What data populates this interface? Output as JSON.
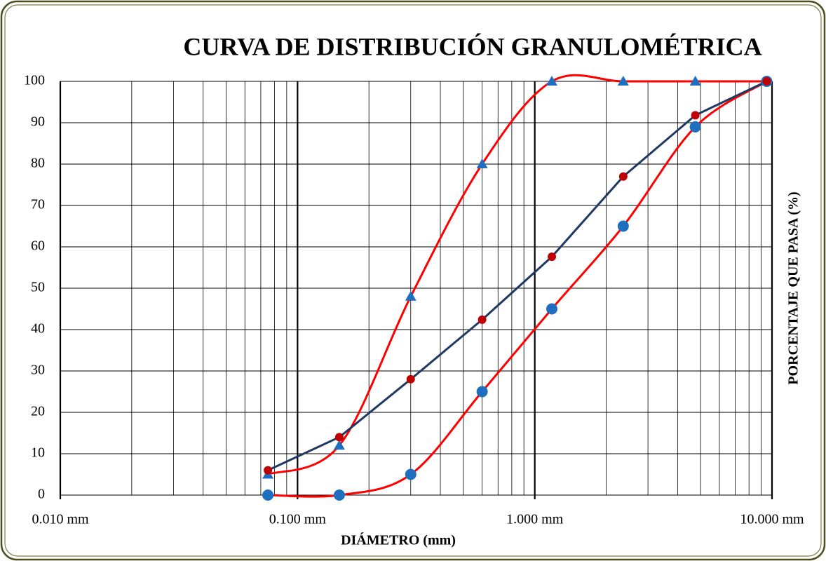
{
  "chart_data": {
    "type": "line",
    "title": "CURVA DE DISTRIBUCIÓN GRANULOMÉTRICA",
    "xlabel": "DIÁMETRO (mm)",
    "ylabel": "PORCENTAJE QUE PASA (%)",
    "x": [
      0.075,
      0.15,
      0.3,
      0.6,
      1.18,
      2.36,
      4.75,
      9.5
    ],
    "xscale": "log",
    "xlim": [
      0.01,
      10
    ],
    "xticks": [
      {
        "value": 0.01,
        "label": "0.010 mm"
      },
      {
        "value": 0.1,
        "label": "0.100 mm"
      },
      {
        "value": 1,
        "label": "1.000 mm"
      },
      {
        "value": 10,
        "label": "10.000 mm"
      }
    ],
    "xminorticks": [
      0.02,
      0.03,
      0.04,
      0.05,
      0.06,
      0.07,
      0.08,
      0.09,
      0.2,
      0.3,
      0.4,
      0.5,
      0.6,
      0.7,
      0.8,
      0.9,
      2,
      3,
      4,
      5,
      6,
      7,
      8,
      9
    ],
    "ylim": [
      0,
      100
    ],
    "yticks": [
      0,
      10,
      20,
      30,
      40,
      50,
      60,
      70,
      80,
      90,
      100
    ],
    "grid": true,
    "series": [
      {
        "color": "#ff0000",
        "marker": "triangle",
        "marker_color": "#1f6fc0",
        "smooth": true,
        "values": [
          5,
          12,
          48,
          80,
          100,
          100,
          100,
          100
        ]
      },
      {
        "color": "#ff0000",
        "marker": "circle",
        "marker_color": "#1f6fc0",
        "smooth": true,
        "values": [
          0,
          0,
          5,
          25,
          45,
          65,
          89,
          100
        ]
      },
      {
        "color": "#1f3864",
        "marker": "dot",
        "marker_color": "#c00000",
        "smooth": false,
        "values": [
          6,
          14,
          28,
          42.4,
          57.6,
          77,
          91.8,
          100
        ]
      }
    ]
  }
}
